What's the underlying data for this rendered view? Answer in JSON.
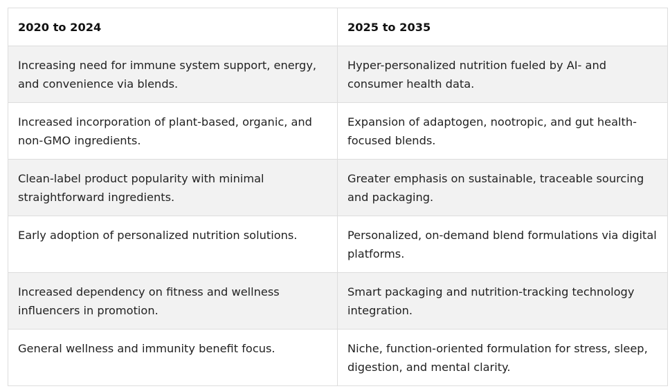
{
  "table": {
    "headers": [
      "2020 to 2024",
      "2025 to 2035"
    ],
    "rows": [
      [
        "Increasing need for immune system support, energy, and convenience via blends.",
        "Hyper-personalized nutrition fueled by AI- and consumer health data."
      ],
      [
        "Increased incorporation of plant-based, organic, and non-GMO ingredients.",
        "Expansion of adaptogen, nootropic, and gut health-focused blends."
      ],
      [
        "Clean-label product popularity with minimal straightforward ingredients.",
        "Greater emphasis on sustainable, traceable sourcing and packaging."
      ],
      [
        "Early adoption of personalized nutrition solutions.",
        "Personalized, on-demand blend formulations via digital platforms."
      ],
      [
        "Increased dependency on fitness and wellness influencers in promotion.",
        "Smart packaging and nutrition-tracking technology integration."
      ],
      [
        "General wellness and immunity benefit focus.",
        "Niche, function-oriented formulation for stress, sleep, digestion, and mental clarity."
      ]
    ]
  },
  "colors": {
    "row_shade": "#f2f2f2",
    "row_plain": "#ffffff",
    "border": "#dddddd"
  }
}
